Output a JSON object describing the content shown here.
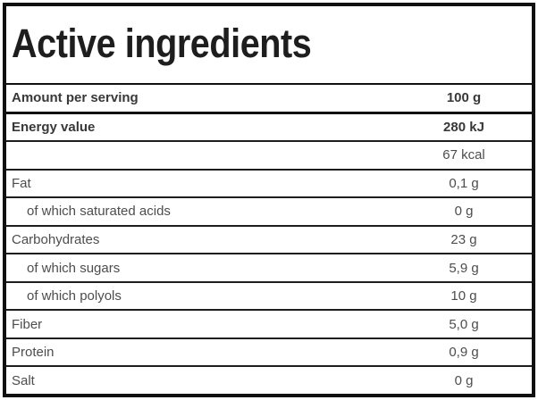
{
  "label": {
    "title": "Active ingredients"
  },
  "table": {
    "rows": [
      {
        "label": "Amount per serving",
        "value": "100 g"
      },
      {
        "label": "Energy value",
        "value": "280 kJ"
      },
      {
        "label": "",
        "value": "67 kcal"
      },
      {
        "label": "Fat",
        "value": "0,1 g"
      },
      {
        "label": "of which saturated acids",
        "value": "0 g"
      },
      {
        "label": "Carbohydrates",
        "value": "23 g"
      },
      {
        "label": "of which sugars",
        "value": "5,9 g"
      },
      {
        "label": "of which polyols",
        "value": "10 g"
      },
      {
        "label": "Fiber",
        "value": "5,0 g"
      },
      {
        "label": "Protein",
        "value": "0,9 g"
      },
      {
        "label": "Salt",
        "value": "0 g"
      }
    ]
  },
  "colors": {
    "border": "#101010",
    "separator": "#1d1d1d",
    "title_text": "#1e1e1e",
    "bold_text": "#383838",
    "regular_text": "#4d4d4d",
    "background": "#ffffff"
  }
}
